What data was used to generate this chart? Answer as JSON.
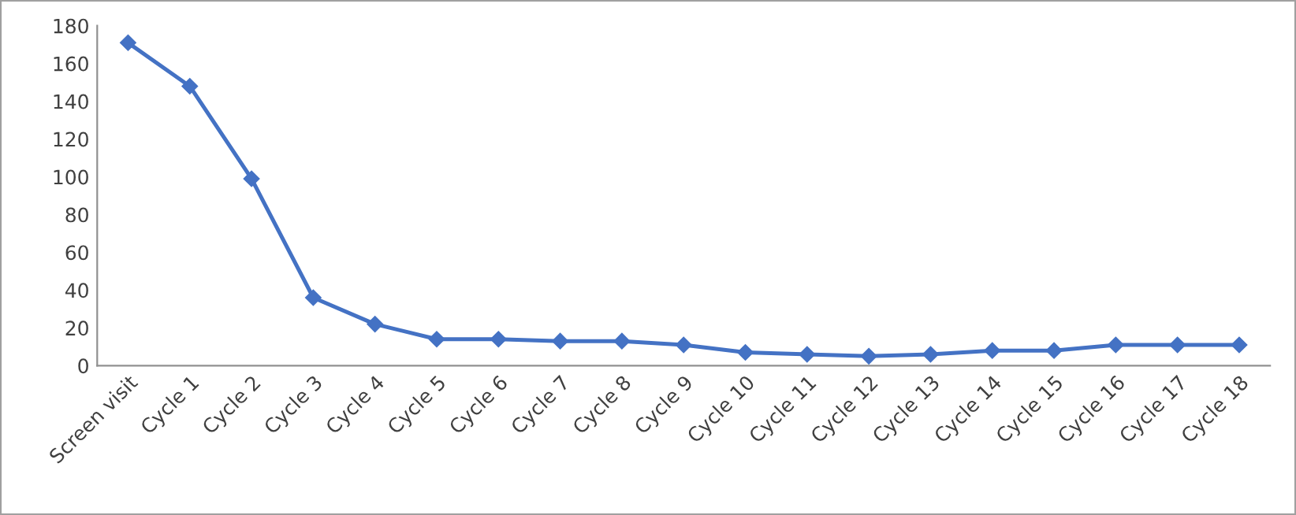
{
  "chart_data": {
    "type": "line",
    "categories": [
      "Screen visit",
      "Cycle 1",
      "Cycle 2",
      "Cycle 3",
      "Cycle 4",
      "Cycle 5",
      "Cycle 6",
      "Cycle 7",
      "Cycle 8",
      "Cycle 9",
      "Cycle 10",
      "Cycle 11",
      "Cycle 12",
      "Cycle 13",
      "Cycle 14",
      "Cycle 15",
      "Cycle 16",
      "Cycle 17",
      "Cycle 18"
    ],
    "series": [
      {
        "color": "#4472c4",
        "values": [
          171,
          148,
          99,
          36,
          22,
          14,
          14,
          13,
          13,
          11,
          7,
          6,
          5,
          6,
          8,
          8,
          11,
          11,
          11
        ]
      }
    ],
    "ylim": [
      0,
      180
    ],
    "yticks": [
      0,
      20,
      40,
      60,
      80,
      100,
      120,
      140,
      160,
      180
    ],
    "marker": "diamond",
    "line_style": "solid",
    "grid": false,
    "legend": false
  }
}
